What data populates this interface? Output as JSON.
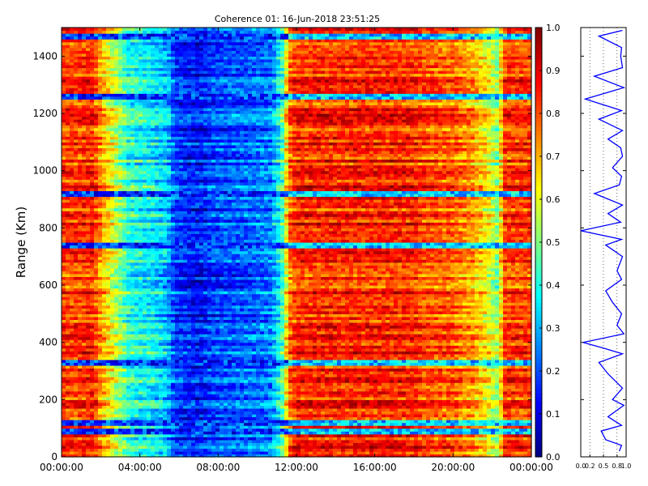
{
  "chart_data": [
    {
      "type": "heatmap",
      "title": "Coherence 01: 16-Jun-2018 23:51:25",
      "ylabel": "Range (Km)",
      "xlabel": "",
      "x_ticks": [
        "00:00:00",
        "04:00:00",
        "08:00:00",
        "12:00:00",
        "16:00:00",
        "20:00:00",
        "00:00:00"
      ],
      "x_range_hours": [
        0,
        24
      ],
      "y_ticks": [
        0,
        200,
        400,
        600,
        800,
        1000,
        1200,
        1400
      ],
      "ylim": [
        0,
        1500
      ],
      "colorscale": "jet",
      "colorbar_ticks": [
        "0.0",
        "0.1",
        "0.2",
        "0.3",
        "0.4",
        "0.5",
        "0.6",
        "0.7",
        "0.8",
        "0.9",
        "1.0"
      ],
      "clim": [
        0,
        1
      ],
      "time_profile": {
        "hours": [
          0,
          1,
          1.6,
          2.0,
          2.6,
          3.4,
          4.4,
          5.4,
          5.8,
          7.0,
          8.0,
          9.5,
          10.7,
          11.3,
          11.6,
          12.0,
          18.0,
          18.4,
          20.0,
          21.0,
          21.8,
          22.3,
          22.6,
          24.0
        ],
        "coherence": [
          0.82,
          0.82,
          0.85,
          0.72,
          0.6,
          0.42,
          0.38,
          0.32,
          0.18,
          0.14,
          0.2,
          0.22,
          0.25,
          0.45,
          0.75,
          0.84,
          0.84,
          0.8,
          0.78,
          0.72,
          0.62,
          0.5,
          0.82,
          0.82
        ]
      },
      "low_coherence_ranges_km": [
        90,
        120,
        330,
        740,
        920,
        1260,
        1470
      ]
    },
    {
      "type": "line",
      "description_axis": "mean coherence vs range",
      "xlim": [
        0,
        1
      ],
      "x_ticks": [
        "0.0",
        "0.2",
        "0.5",
        "0.8",
        "1.0"
      ],
      "ylim": [
        0,
        1500
      ],
      "series": [
        {
          "color": "#0000ff",
          "range_km": [
            20,
            40,
            60,
            90,
            110,
            140,
            180,
            200,
            240,
            290,
            330,
            360,
            380,
            400,
            430,
            460,
            500,
            540,
            580,
            620,
            650,
            700,
            740,
            760,
            790,
            820,
            850,
            880,
            920,
            950,
            980,
            1010,
            1050,
            1080,
            1110,
            1140,
            1180,
            1210,
            1250,
            1290,
            1330,
            1360,
            1400,
            1430,
            1470,
            1490
          ],
          "coherence": [
            0.85,
            0.9,
            0.55,
            0.45,
            0.9,
            0.6,
            0.95,
            0.7,
            0.92,
            0.6,
            0.4,
            0.92,
            0.5,
            0.05,
            0.95,
            0.8,
            0.9,
            0.7,
            0.55,
            0.9,
            0.8,
            0.92,
            0.55,
            0.9,
            0.0,
            0.88,
            0.6,
            0.92,
            0.3,
            0.85,
            0.9,
            0.7,
            0.92,
            0.88,
            0.6,
            0.92,
            0.4,
            0.9,
            0.1,
            0.95,
            0.3,
            0.92,
            0.88,
            0.9,
            0.4,
            0.92
          ]
        }
      ]
    }
  ]
}
